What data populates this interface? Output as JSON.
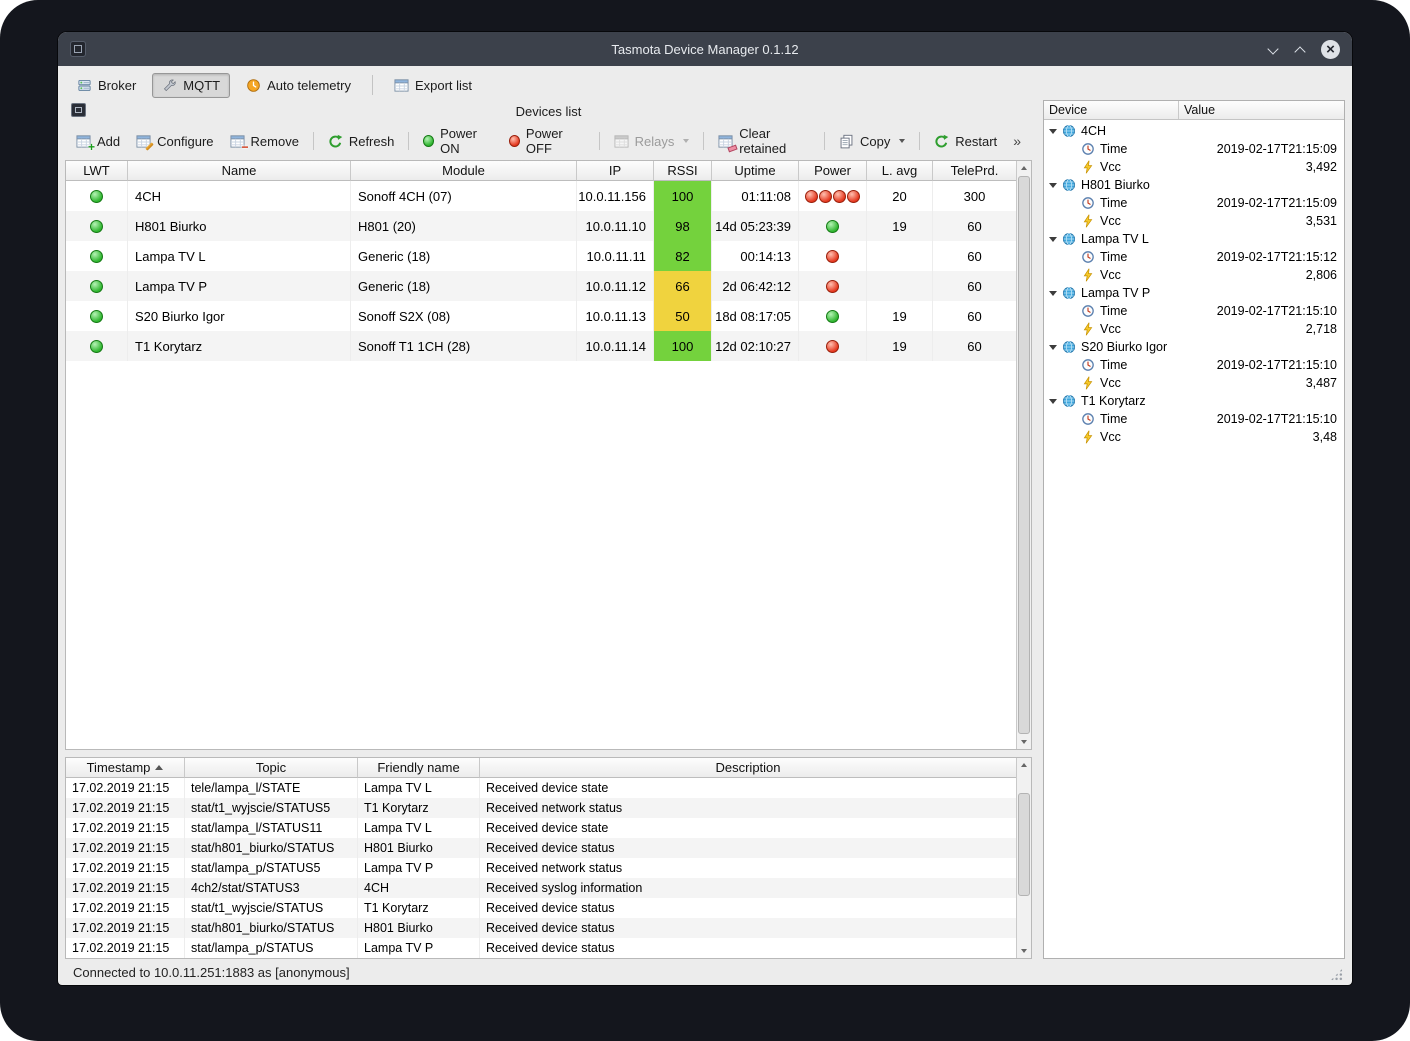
{
  "colors": {
    "led_on": "#2fb52f",
    "led_off": "#e5381f"
  },
  "window": {
    "title": "Tasmota Device Manager 0.1.12"
  },
  "toolbar": {
    "broker": "Broker",
    "mqtt": "MQTT",
    "auto_telemetry": "Auto telemetry",
    "export_list": "Export list"
  },
  "devices": {
    "panel_title": "Devices list",
    "actions": {
      "add": "Add",
      "configure": "Configure",
      "remove": "Remove",
      "refresh": "Refresh",
      "power_on": "Power ON",
      "power_off": "Power OFF",
      "relays": "Relays",
      "clear_retained": "Clear retained",
      "copy": "Copy",
      "restart": "Restart",
      "overflow": "»"
    },
    "columns": {
      "lwt": "LWT",
      "name": "Name",
      "module": "Module",
      "ip": "IP",
      "rssi": "RSSI",
      "uptime": "Uptime",
      "power": "Power",
      "lavg": "L. avg",
      "teleprd": "TelePrd."
    },
    "rows": [
      {
        "lwt": "on",
        "name": "4CH",
        "module": "Sonoff 4CH (07)",
        "ip": "10.0.11.156",
        "rssi": "100",
        "rssi_color": "#74d23d",
        "uptime": "01:11:08",
        "power": [
          "off",
          "off",
          "off",
          "off"
        ],
        "lavg": "20",
        "teleprd": "300"
      },
      {
        "lwt": "on",
        "name": "H801 Biurko",
        "module": "H801 (20)",
        "ip": "10.0.11.10",
        "rssi": "98",
        "rssi_color": "#74d23d",
        "uptime": "14d 05:23:39",
        "power": [
          "on"
        ],
        "lavg": "19",
        "teleprd": "60"
      },
      {
        "lwt": "on",
        "name": "Lampa TV L",
        "module": "Generic (18)",
        "ip": "10.0.11.11",
        "rssi": "82",
        "rssi_color": "#74d23d",
        "uptime": "00:14:13",
        "power": [
          "off"
        ],
        "lavg": "",
        "teleprd": "60"
      },
      {
        "lwt": "on",
        "name": "Lampa TV P",
        "module": "Generic (18)",
        "ip": "10.0.11.12",
        "rssi": "66",
        "rssi_color": "#f0d33e",
        "uptime": "2d 06:42:12",
        "power": [
          "off"
        ],
        "lavg": "",
        "teleprd": "60"
      },
      {
        "lwt": "on",
        "name": "S20 Biurko Igor",
        "module": "Sonoff S2X (08)",
        "ip": "10.0.11.13",
        "rssi": "50",
        "rssi_color": "#f0d33e",
        "uptime": "18d 08:17:05",
        "power": [
          "on"
        ],
        "lavg": "19",
        "teleprd": "60"
      },
      {
        "lwt": "on",
        "name": "T1 Korytarz",
        "module": "Sonoff T1 1CH (28)",
        "ip": "10.0.11.14",
        "rssi": "100",
        "rssi_color": "#74d23d",
        "uptime": "12d 02:10:27",
        "power": [
          "off"
        ],
        "lavg": "19",
        "teleprd": "60"
      }
    ]
  },
  "telemetry": {
    "columns": {
      "device": "Device",
      "value": "Value"
    },
    "labels": {
      "time": "Time",
      "vcc": "Vcc"
    },
    "devices": [
      {
        "name": "4CH",
        "time": "2019-02-17T21:15:09",
        "vcc": "3,492"
      },
      {
        "name": "H801 Biurko",
        "time": "2019-02-17T21:15:09",
        "vcc": "3,531"
      },
      {
        "name": "Lampa TV L",
        "time": "2019-02-17T21:15:12",
        "vcc": "2,806"
      },
      {
        "name": "Lampa TV P",
        "time": "2019-02-17T21:15:10",
        "vcc": "2,718"
      },
      {
        "name": "S20 Biurko Igor",
        "time": "2019-02-17T21:15:10",
        "vcc": "3,487"
      },
      {
        "name": "T1 Korytarz",
        "time": "2019-02-17T21:15:10",
        "vcc": "3,48"
      }
    ]
  },
  "log": {
    "columns": {
      "timestamp": "Timestamp",
      "topic": "Topic",
      "friendly": "Friendly name",
      "description": "Description"
    },
    "rows": [
      {
        "ts": "17.02.2019 21:15",
        "topic": "tele/lampa_l/STATE",
        "friendly": "Lampa TV L",
        "desc": "Received device state"
      },
      {
        "ts": "17.02.2019 21:15",
        "topic": "stat/t1_wyjscie/STATUS5",
        "friendly": "T1 Korytarz",
        "desc": "Received network status"
      },
      {
        "ts": "17.02.2019 21:15",
        "topic": "stat/lampa_l/STATUS11",
        "friendly": "Lampa TV L",
        "desc": "Received device state"
      },
      {
        "ts": "17.02.2019 21:15",
        "topic": "stat/h801_biurko/STATUS",
        "friendly": "H801 Biurko",
        "desc": "Received device status"
      },
      {
        "ts": "17.02.2019 21:15",
        "topic": "stat/lampa_p/STATUS5",
        "friendly": "Lampa TV P",
        "desc": "Received network status"
      },
      {
        "ts": "17.02.2019 21:15",
        "topic": "4ch2/stat/STATUS3",
        "friendly": "4CH",
        "desc": "Received syslog information"
      },
      {
        "ts": "17.02.2019 21:15",
        "topic": "stat/t1_wyjscie/STATUS",
        "friendly": "T1 Korytarz",
        "desc": "Received device status"
      },
      {
        "ts": "17.02.2019 21:15",
        "topic": "stat/h801_biurko/STATUS",
        "friendly": "H801 Biurko",
        "desc": "Received device status"
      },
      {
        "ts": "17.02.2019 21:15",
        "topic": "stat/lampa_p/STATUS",
        "friendly": "Lampa TV P",
        "desc": "Received device status"
      }
    ]
  },
  "statusbar": {
    "text": "Connected to 10.0.11.251:1883 as [anonymous]"
  }
}
